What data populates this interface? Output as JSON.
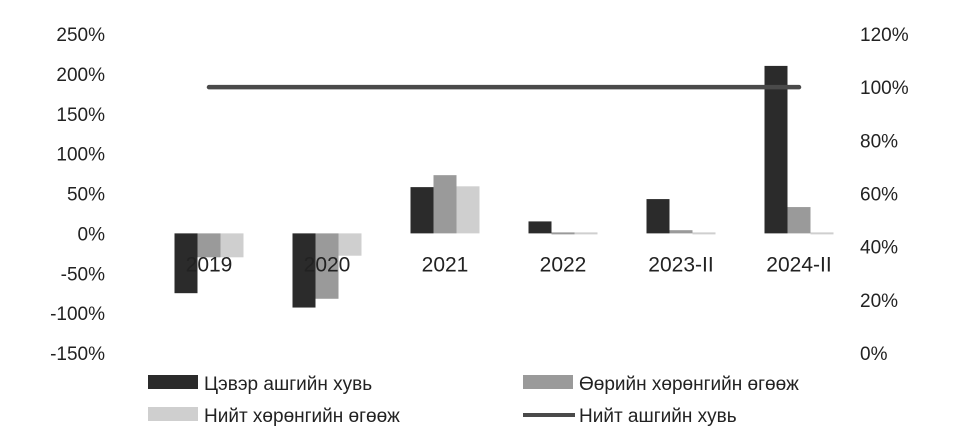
{
  "chart_data": {
    "type": "bar",
    "categories": [
      "2019",
      "2020",
      "2021",
      "2022",
      "2023-II",
      "2024-II"
    ],
    "series": [
      {
        "name": "Цэвэр ашгийн хувь",
        "type": "bar",
        "axis": "left",
        "color": "#2b2b2b",
        "values": [
          -75,
          -93,
          58,
          15,
          43,
          210
        ]
      },
      {
        "name": "Өөрийн хөрөнгийн өгөөж",
        "type": "bar",
        "axis": "left",
        "color": "#9a9a9a",
        "values": [
          -30,
          -82,
          73,
          0,
          4,
          33
        ]
      },
      {
        "name": "Нийт хөрөнгийн өгөөж",
        "type": "bar",
        "axis": "left",
        "color": "#cfcfcf",
        "values": [
          -30,
          -28,
          59,
          0,
          1,
          0
        ]
      },
      {
        "name": "Нийт ашгийн хувь",
        "type": "line",
        "axis": "right",
        "color": "#4a4a4a",
        "values": [
          100,
          100,
          100,
          100,
          100,
          100
        ]
      }
    ],
    "y_left": {
      "ylim": [
        -150,
        250
      ],
      "ticks": [
        "250%",
        "200%",
        "150%",
        "100%",
        "50%",
        "0%",
        "-50%",
        "-100%",
        "-150%"
      ]
    },
    "y_right": {
      "ylim": [
        0,
        120
      ],
      "ticks": [
        "120%",
        "100%",
        "80%",
        "60%",
        "40%",
        "20%",
        "0%"
      ]
    },
    "grid": false,
    "legend_position": "bottom"
  }
}
